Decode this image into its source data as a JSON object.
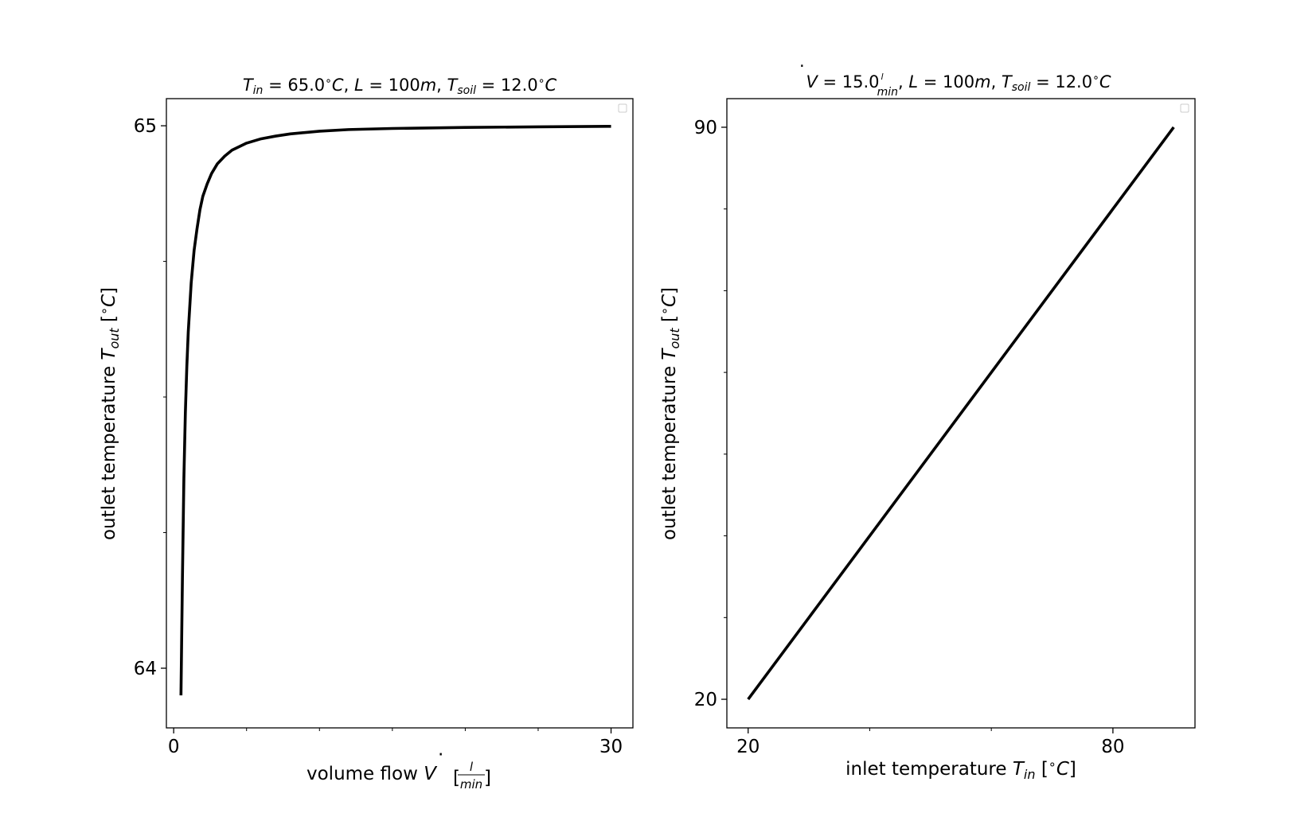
{
  "chart_data": [
    {
      "type": "line",
      "title": {
        "t_in": "T",
        "t_in_sub": "in",
        "t_in_val": " = 65.0",
        "deg_c": "C",
        "L": "L",
        "L_val": " = 100",
        "m": "m",
        "t_soil": "T",
        "t_soil_sub": "soil",
        "t_soil_val": " = 12.0"
      },
      "xlabel": {
        "prefix": "volume flow ",
        "v": "V",
        "frac_top": "l",
        "frac_bottom": "min"
      },
      "ylabel": {
        "prefix": "outlet temperature ",
        "t": "T",
        "sub": "out",
        "unit_open": "[",
        "deg": "°",
        "c": "C",
        "unit_close": "]"
      },
      "xlim": [
        -0.5,
        31.5
      ],
      "ylim": [
        63.89,
        65.05
      ],
      "x_ticks_major": [
        {
          "value": 0,
          "label": "0"
        },
        {
          "value": 30,
          "label": "30"
        }
      ],
      "x_ticks_minor": [
        5,
        10,
        15,
        20,
        25
      ],
      "y_ticks_major": [
        {
          "value": 64,
          "label": "64"
        },
        {
          "value": 65,
          "label": "65"
        }
      ],
      "y_ticks_minor": [
        64.25,
        64.5,
        64.75
      ],
      "legend": "upper right (empty)",
      "series": [
        {
          "color": "#000000",
          "x": [
            0.5,
            0.6,
            0.7,
            0.8,
            0.9,
            1.0,
            1.2,
            1.4,
            1.6,
            1.8,
            2.0,
            2.3,
            2.6,
            3.0,
            3.5,
            4.0,
            5.0,
            6.0,
            7.0,
            8.0,
            10.0,
            12.0,
            15.0,
            20.0,
            25.0,
            30.0
          ],
          "y": [
            63.95,
            64.165,
            64.35,
            64.47,
            64.555,
            64.62,
            64.71,
            64.77,
            64.81,
            64.845,
            64.87,
            64.893,
            64.912,
            64.93,
            64.944,
            64.955,
            64.968,
            64.976,
            64.981,
            64.985,
            64.99,
            64.993,
            64.995,
            64.997,
            64.998,
            64.999
          ]
        }
      ]
    },
    {
      "type": "line",
      "title": {
        "v": "V",
        "v_val": " = 15.0",
        "frac_top": "l",
        "frac_bottom": "min",
        "L": "L",
        "L_val": " = 100",
        "m": "m",
        "t_soil": "T",
        "t_soil_sub": "soil",
        "t_soil_val": " = 12.0",
        "deg_c": "C"
      },
      "xlabel": {
        "prefix": "inlet temperature ",
        "t": "T",
        "sub": "in",
        "unit_open": "[",
        "deg": "°",
        "c": "C",
        "unit_close": "]"
      },
      "ylabel": {
        "prefix": "outlet temperature ",
        "t": "T",
        "sub": "out",
        "unit_open": "[",
        "deg": "°",
        "c": "C",
        "unit_close": "]"
      },
      "xlim": [
        16.5,
        93.5
      ],
      "ylim": [
        16.5,
        93.5
      ],
      "x_ticks_major": [
        {
          "value": 20,
          "label": "20"
        },
        {
          "value": 80,
          "label": "80"
        }
      ],
      "x_ticks_minor": [
        40,
        60
      ],
      "y_ticks_major": [
        {
          "value": 20,
          "label": "20"
        },
        {
          "value": 90,
          "label": "90"
        }
      ],
      "y_ticks_minor": [
        30,
        40,
        50,
        60,
        70,
        80
      ],
      "legend": "upper right (empty)",
      "series": [
        {
          "color": "#000000",
          "x": [
            20,
            90
          ],
          "y": [
            20,
            90
          ]
        }
      ]
    }
  ]
}
